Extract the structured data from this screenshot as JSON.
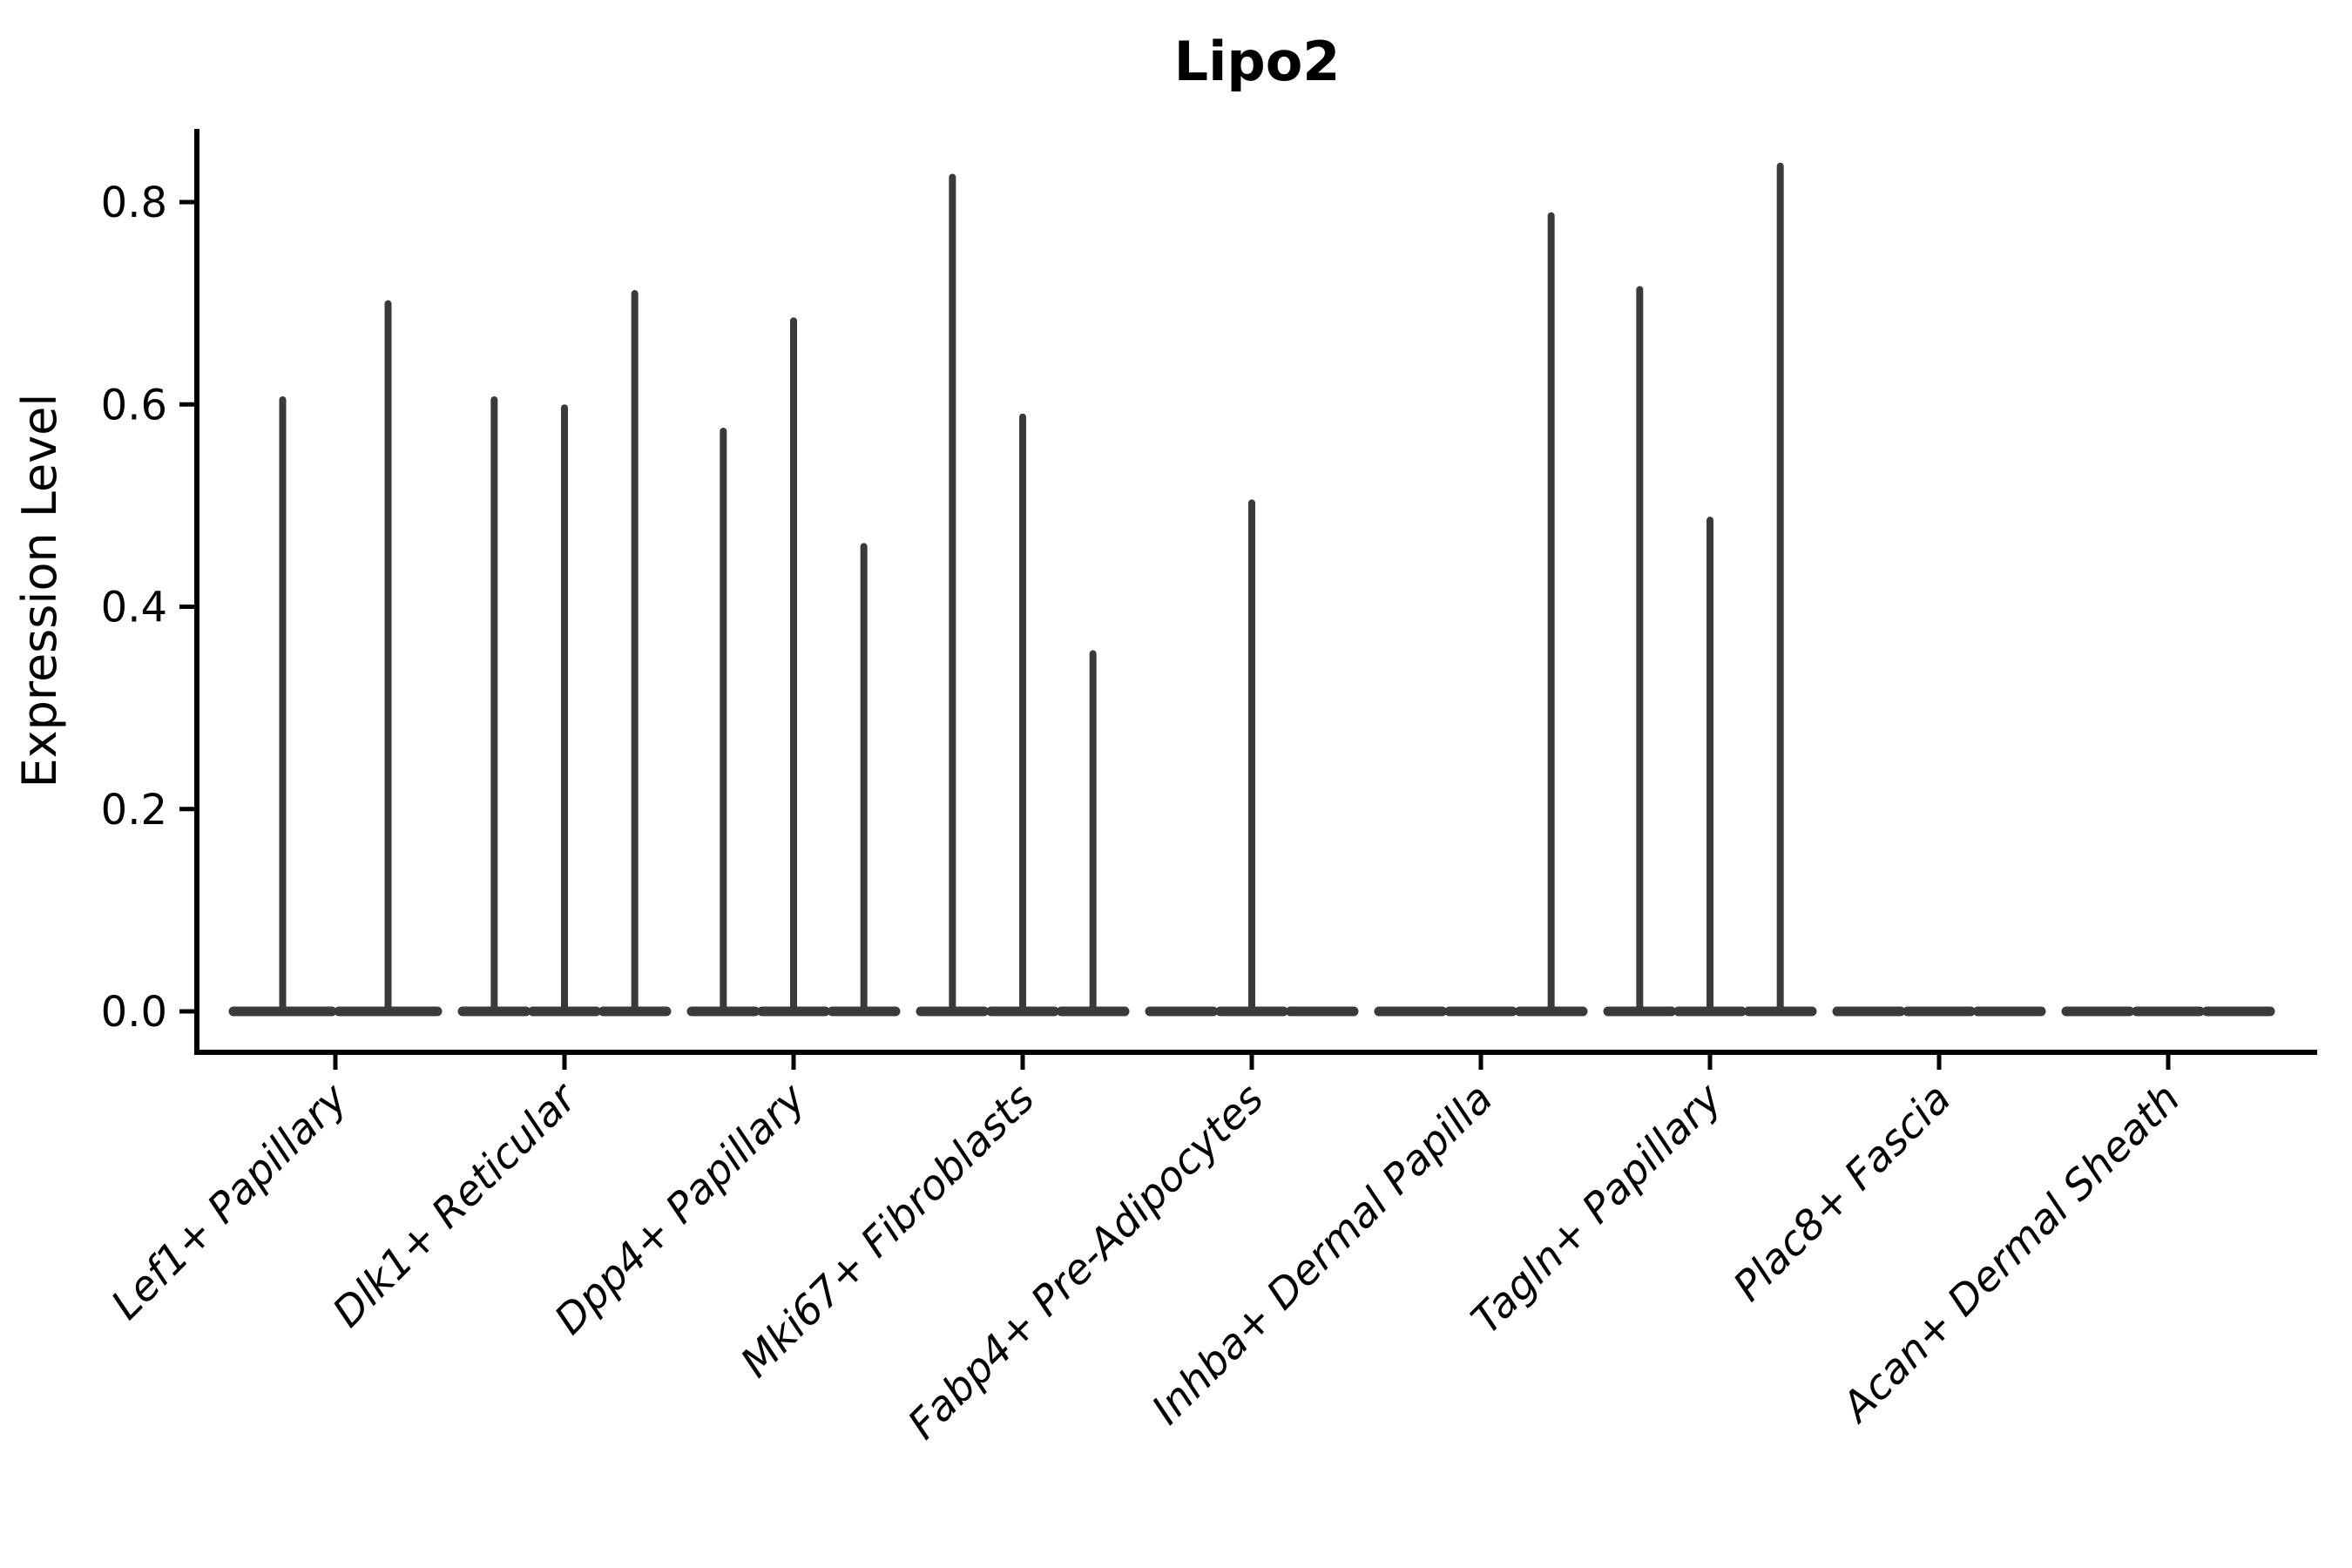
{
  "chart_data": {
    "type": "violin",
    "title": "Lipo2",
    "ylabel": "Expression Level",
    "xlabel": "",
    "ylim": [
      0,
      0.872
    ],
    "yticks": [
      0,
      0.2,
      0.4,
      0.6,
      0.8
    ],
    "ytick_labels": [
      "0.0",
      "0.2",
      "0.4",
      "0.6",
      "0.8"
    ],
    "grid": false,
    "legend": "none",
    "violin_color": "#3a3a3a",
    "axis_color": "#000000",
    "style_note": "violins collapsed to a flat bar at 0 with one thin density spike per violin; spike height = max expression",
    "categories": [
      {
        "label": "Lef1+ Papillary",
        "violin_maxima": [
          0.608,
          0.703
        ]
      },
      {
        "label": "Dlk1+ Reticular",
        "violin_maxima": [
          0.608,
          0.6,
          0.713
        ]
      },
      {
        "label": "Dpp4+ Papillary",
        "violin_maxima": [
          0.577,
          0.686,
          0.463
        ]
      },
      {
        "label": "Mki67+ Fibroblasts",
        "violin_maxima": [
          0.828,
          0.591,
          0.357
        ]
      },
      {
        "label": "Fabp4+ Pre-Adipocytes",
        "violin_maxima": [
          0,
          0.506,
          0
        ]
      },
      {
        "label": "Inhba+ Dermal Papilla",
        "violin_maxima": [
          0,
          0,
          0.79
        ]
      },
      {
        "label": "Tagln+ Papillary",
        "violin_maxima": [
          0.717,
          0.489,
          0.839
        ]
      },
      {
        "label": "Plac8+ Fascia",
        "violin_maxima": [
          0,
          0,
          0
        ]
      },
      {
        "label": "Acan+ Dermal Sheath",
        "violin_maxima": [
          0,
          0,
          0
        ]
      }
    ]
  }
}
